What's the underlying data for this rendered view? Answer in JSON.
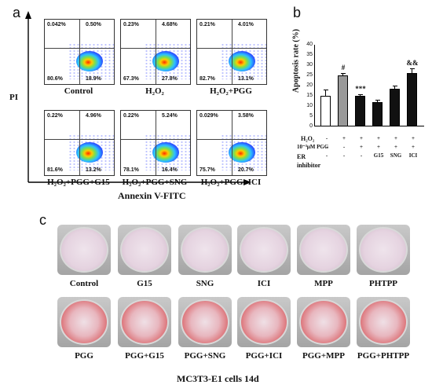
{
  "panel_a": {
    "letter": "a",
    "y_axis_label": "PI",
    "x_axis_label": "Annexin V-FITC",
    "plots": [
      {
        "label": "Control",
        "ul": "0.042%",
        "ur": "0.50%",
        "ll": "80.6%",
        "lr": "18.9%"
      },
      {
        "label": "H₂O₂",
        "ul": "0.23%",
        "ur": "4.68%",
        "ll": "67.3%",
        "lr": "27.8%"
      },
      {
        "label": "H₂O₂+PGG",
        "ul": "0.21%",
        "ur": "4.01%",
        "ll": "82.7%",
        "lr": "13.1%"
      },
      {
        "label": "H₂O₂+PGG+G15",
        "ul": "0.22%",
        "ur": "4.96%",
        "ll": "81.6%",
        "lr": "13.2%"
      },
      {
        "label": "H₂O₂+PGG+SNG",
        "ul": "0.22%",
        "ur": "5.24%",
        "ll": "78.1%",
        "lr": "16.4%"
      },
      {
        "label": "H₂O₂+PGG+ICI",
        "ul": "0.029%",
        "ur": "3.58%",
        "ll": "75.7%",
        "lr": "20.7%"
      }
    ]
  },
  "panel_b": {
    "letter": "b",
    "chart_data": {
      "type": "bar",
      "ylabel": "Apoptosis rate (%)",
      "ylim": [
        0,
        40
      ],
      "yticks": [
        "0",
        "5",
        "10",
        "15",
        "20",
        "25",
        "30",
        "35",
        "40"
      ],
      "values": [
        15,
        25,
        15,
        12,
        18.5,
        26
      ],
      "errors": [
        3,
        1.2,
        0.8,
        1,
        1.5,
        2.5
      ],
      "fills": [
        "#ffffff",
        "#999999",
        "#111111",
        "#111111",
        "#111111",
        "#111111"
      ],
      "significance": [
        "",
        "#",
        "***",
        "",
        "",
        "&&"
      ]
    },
    "table": {
      "row1_label": "H₂O₂",
      "row1": [
        "-",
        "+",
        "+",
        "+",
        "+",
        "+"
      ],
      "row2_label": "10⁻³μM PGG",
      "row2": [
        "-",
        "-",
        "+",
        "+",
        "+",
        "+"
      ],
      "row3_label": "ER inhibitor",
      "row3": [
        "-",
        "-",
        "-",
        "G15",
        "SNG",
        "ICI"
      ]
    }
  },
  "panel_c": {
    "letter": "c",
    "top_row": [
      "Control",
      "G15",
      "SNG",
      "ICI",
      "MPP",
      "PHTPP"
    ],
    "bottom_row": [
      "PGG",
      "PGG+G15",
      "PGG+SNG",
      "PGG+ICI",
      "PGG+MPP",
      "PGG+PHTPP"
    ],
    "caption": "MC3T3-E1 cells 14d"
  }
}
